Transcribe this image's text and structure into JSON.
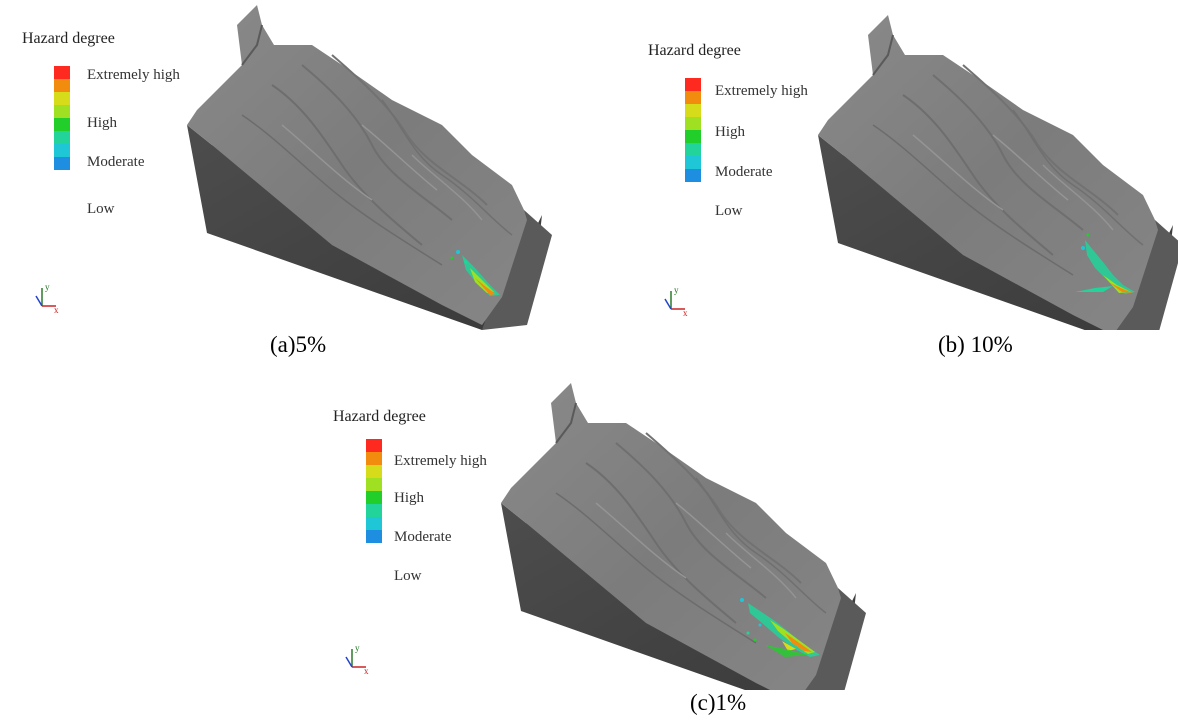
{
  "legend": {
    "title": "Hazard degree",
    "labels": [
      "Extremely high",
      "High",
      "Moderate",
      "Low"
    ],
    "colors": [
      "#ff2a1f",
      "#f28c0f",
      "#d6dc19",
      "#9fe022",
      "#22cf2a",
      "#22d39a",
      "#1fc6d6",
      "#1e8fe0"
    ]
  },
  "axis_labels": {
    "y": "y",
    "x": "x"
  },
  "panels": [
    {
      "caption": "(a)5%"
    },
    {
      "caption": "(b) 10%"
    },
    {
      "caption": "(c)1%"
    }
  ]
}
